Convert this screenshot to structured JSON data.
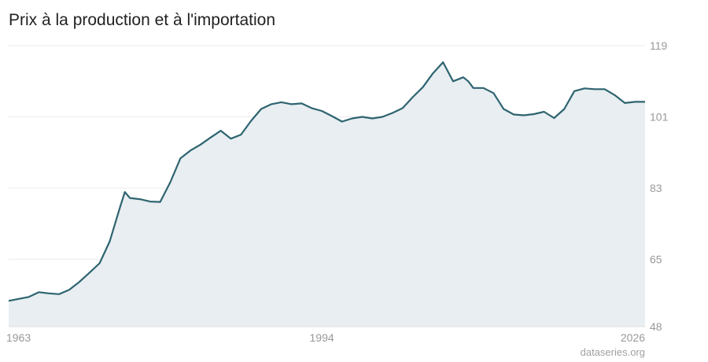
{
  "title": "Prix à la production et à l'importation",
  "source": "dataseries.org",
  "colors": {
    "line": "#2e6470",
    "area": "#e8eef1",
    "grid": "#ebebeb",
    "tick_text": "#999999"
  },
  "chart_data": {
    "type": "area",
    "title": "Prix à la production et à l'importation",
    "xlabel": "",
    "ylabel": "",
    "xlim": [
      1963,
      2026
    ],
    "ylim": [
      48,
      119
    ],
    "grid": true,
    "y_axis_side": "right",
    "x_ticks": [
      "1963",
      "1994",
      "2026"
    ],
    "y_ticks": [
      "119",
      "101",
      "83",
      "65",
      "48"
    ],
    "series": [
      {
        "x": [
          1963,
          1964,
          1965,
          1966,
          1967,
          1968,
          1969,
          1970,
          1971,
          1972,
          1973,
          1974,
          1974.5,
          1975,
          1976,
          1977,
          1978,
          1979,
          1980,
          1981,
          1982,
          1983,
          1984,
          1985,
          1986,
          1987,
          1988,
          1989,
          1990,
          1991,
          1992,
          1993,
          1994,
          1995,
          1996,
          1997,
          1998,
          1999,
          2000,
          2001,
          2002,
          2003,
          2004,
          2005,
          2006,
          2007,
          2008,
          2008.5,
          2009,
          2010,
          2011,
          2012,
          2013,
          2014,
          2015,
          2016,
          2017,
          2018,
          2019,
          2020,
          2021,
          2022,
          2023,
          2024,
          2025,
          2026
        ],
        "y": [
          54.5,
          55,
          55.5,
          56.7,
          56.4,
          56.2,
          57.3,
          59.3,
          61.6,
          64,
          69.5,
          78,
          82,
          80.5,
          80.2,
          79.6,
          79.5,
          84.5,
          90.5,
          92.5,
          94,
          95.8,
          97.5,
          95.5,
          96.5,
          100,
          103,
          104.2,
          104.7,
          104.2,
          104.4,
          103.2,
          102.5,
          101.2,
          99.8,
          100.6,
          101,
          100.6,
          101,
          102,
          103.2,
          106,
          108.5,
          112,
          114.8,
          110,
          111,
          110,
          108.3,
          108.3,
          107,
          103,
          101.6,
          101.4,
          101.7,
          102.3,
          100.7,
          103,
          107.5,
          108.2,
          108,
          108,
          106.5,
          104.5,
          104.8,
          104.8
        ]
      }
    ]
  }
}
